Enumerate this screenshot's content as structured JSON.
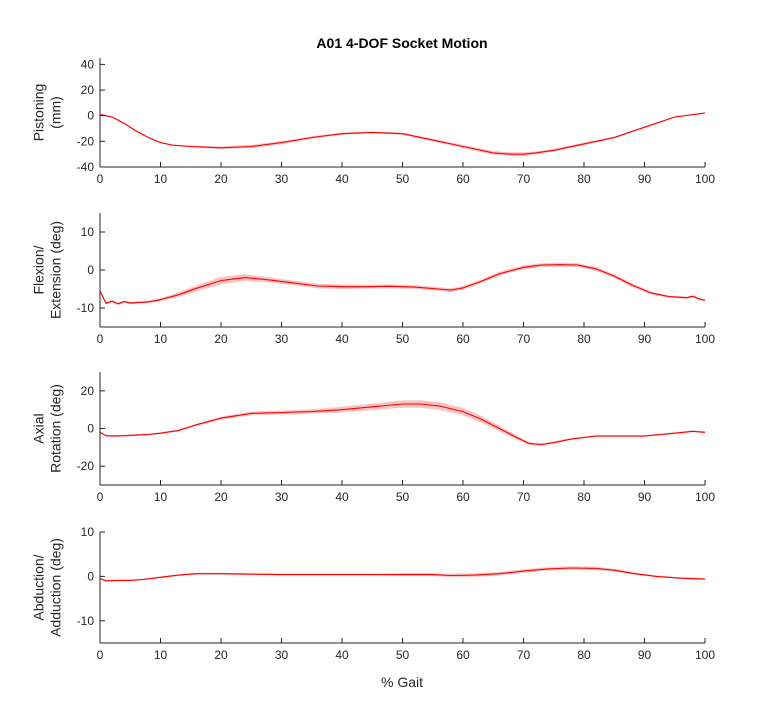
{
  "figure": {
    "title": "A01 4-DOF Socket Motion",
    "xlabel": "% Gait",
    "line_color": "#ff0000",
    "band_color": "#f7b9b9"
  },
  "chart_data": [
    {
      "type": "line",
      "ylabel_lines": [
        "Pistoning",
        "(mm)"
      ],
      "xlim": [
        0,
        100
      ],
      "ylim": [
        -40,
        45
      ],
      "xticks": [
        0,
        10,
        20,
        30,
        40,
        50,
        60,
        70,
        80,
        90,
        100
      ],
      "yticks": [
        -40,
        -20,
        0,
        20,
        40
      ],
      "grid": false,
      "series": [
        {
          "x": [
            0,
            2,
            4,
            6,
            8,
            10,
            12,
            15,
            20,
            25,
            30,
            35,
            40,
            45,
            50,
            55,
            60,
            65,
            68,
            70,
            72,
            75,
            80,
            85,
            90,
            95,
            100
          ],
          "mean": [
            1,
            -1,
            -6,
            -12,
            -17,
            -21,
            -23,
            -24,
            -25,
            -24,
            -21,
            -17,
            -14,
            -13,
            -14,
            -19,
            -24,
            -29,
            -30,
            -30,
            -29,
            -27,
            -22,
            -17,
            -9,
            -1,
            2
          ],
          "band": [
            0.5,
            0.5,
            0.5,
            0.5,
            0.5,
            0.5,
            0.5,
            0.7,
            1.0,
            1.2,
            1.2,
            1.0,
            0.8,
            0.8,
            0.8,
            1.0,
            1.2,
            1.5,
            1.5,
            1.5,
            1.2,
            1.0,
            1.0,
            0.8,
            0.6,
            0.5,
            0.5
          ]
        }
      ]
    },
    {
      "type": "line",
      "ylabel_lines": [
        "Flexion/",
        "Extension (deg)"
      ],
      "xlim": [
        0,
        100
      ],
      "ylim": [
        -15,
        15
      ],
      "xticks": [
        0,
        10,
        20,
        30,
        40,
        50,
        60,
        70,
        80,
        90,
        100
      ],
      "yticks": [
        -10,
        0,
        10
      ],
      "grid": false,
      "series": [
        {
          "x": [
            0,
            1,
            2,
            3,
            4,
            5,
            6,
            8,
            10,
            13,
            16,
            20,
            24,
            28,
            32,
            36,
            40,
            44,
            48,
            52,
            56,
            58,
            60,
            63,
            66,
            70,
            73,
            76,
            79,
            82,
            85,
            88,
            91,
            94,
            97,
            98,
            99,
            100
          ],
          "mean": [
            -5.5,
            -8.8,
            -8.2,
            -8.9,
            -8.3,
            -8.7,
            -8.6,
            -8.4,
            -7.8,
            -6.5,
            -4.8,
            -2.8,
            -2.0,
            -2.6,
            -3.4,
            -4.2,
            -4.4,
            -4.4,
            -4.3,
            -4.5,
            -5.0,
            -5.3,
            -4.7,
            -3.0,
            -1.0,
            0.7,
            1.3,
            1.4,
            1.3,
            0.3,
            -1.6,
            -4.0,
            -6.0,
            -7.0,
            -7.3,
            -6.9,
            -7.6,
            -8.0
          ],
          "band": [
            0.3,
            0.3,
            0.3,
            0.3,
            0.3,
            0.3,
            0.3,
            0.3,
            0.4,
            0.6,
            0.8,
            1.0,
            0.9,
            0.7,
            0.6,
            0.6,
            0.6,
            0.5,
            0.5,
            0.5,
            0.5,
            0.5,
            0.5,
            0.5,
            0.5,
            0.5,
            0.5,
            0.5,
            0.5,
            0.5,
            0.5,
            0.5,
            0.4,
            0.3,
            0.3,
            0.3,
            0.3,
            0.3
          ]
        }
      ]
    },
    {
      "type": "line",
      "ylabel_lines": [
        "Axial",
        "Rotation (deg)"
      ],
      "xlim": [
        0,
        100
      ],
      "ylim": [
        -30,
        30
      ],
      "xticks": [
        0,
        10,
        20,
        30,
        40,
        50,
        60,
        70,
        80,
        90,
        100
      ],
      "yticks": [
        -20,
        0,
        20
      ],
      "grid": false,
      "series": [
        {
          "x": [
            0,
            1,
            2,
            4,
            6,
            8,
            10,
            13,
            16,
            20,
            25,
            30,
            35,
            40,
            45,
            50,
            53,
            56,
            60,
            63,
            66,
            69,
            71,
            73,
            75,
            78,
            82,
            86,
            90,
            95,
            98,
            100
          ],
          "mean": [
            -2,
            -3.8,
            -4,
            -3.8,
            -3.5,
            -3.2,
            -2.5,
            -1,
            2,
            5.5,
            8,
            8.5,
            9,
            10,
            11.5,
            13,
            13,
            12,
            9,
            5,
            0,
            -5,
            -8,
            -8.5,
            -7.5,
            -5.5,
            -4,
            -4,
            -4,
            -2.5,
            -1.5,
            -2
          ],
          "band": [
            0.5,
            0.5,
            0.5,
            0.5,
            0.5,
            0.5,
            0.5,
            0.5,
            0.6,
            0.8,
            1.0,
            1.0,
            1.2,
            1.5,
            1.8,
            2.0,
            2.0,
            2.0,
            2.0,
            1.8,
            1.5,
            1.0,
            0.8,
            0.7,
            0.6,
            0.5,
            0.5,
            0.5,
            0.5,
            0.5,
            0.5,
            0.5
          ]
        }
      ]
    },
    {
      "type": "line",
      "ylabel_lines": [
        "Abduction/",
        "Adduction (deg)"
      ],
      "xlim": [
        0,
        100
      ],
      "ylim": [
        -15,
        10
      ],
      "xticks": [
        0,
        10,
        20,
        30,
        40,
        50,
        60,
        70,
        80,
        90,
        100
      ],
      "yticks": [
        -10,
        0,
        10
      ],
      "grid": false,
      "series": [
        {
          "x": [
            0,
            1,
            3,
            5,
            7,
            10,
            13,
            16,
            20,
            25,
            30,
            35,
            40,
            45,
            50,
            55,
            58,
            62,
            66,
            70,
            74,
            78,
            82,
            85,
            88,
            92,
            96,
            100
          ],
          "mean": [
            -0.5,
            -1,
            -0.9,
            -0.9,
            -0.7,
            -0.2,
            0.3,
            0.6,
            0.6,
            0.5,
            0.4,
            0.4,
            0.4,
            0.4,
            0.4,
            0.4,
            0.2,
            0.3,
            0.6,
            1.2,
            1.7,
            1.9,
            1.8,
            1.4,
            0.7,
            0,
            -0.4,
            -0.6
          ],
          "band": [
            0.2,
            0.2,
            0.2,
            0.2,
            0.2,
            0.2,
            0.2,
            0.2,
            0.2,
            0.2,
            0.2,
            0.2,
            0.2,
            0.2,
            0.3,
            0.3,
            0.4,
            0.4,
            0.4,
            0.4,
            0.4,
            0.4,
            0.4,
            0.3,
            0.3,
            0.2,
            0.2,
            0.2
          ]
        }
      ]
    }
  ]
}
